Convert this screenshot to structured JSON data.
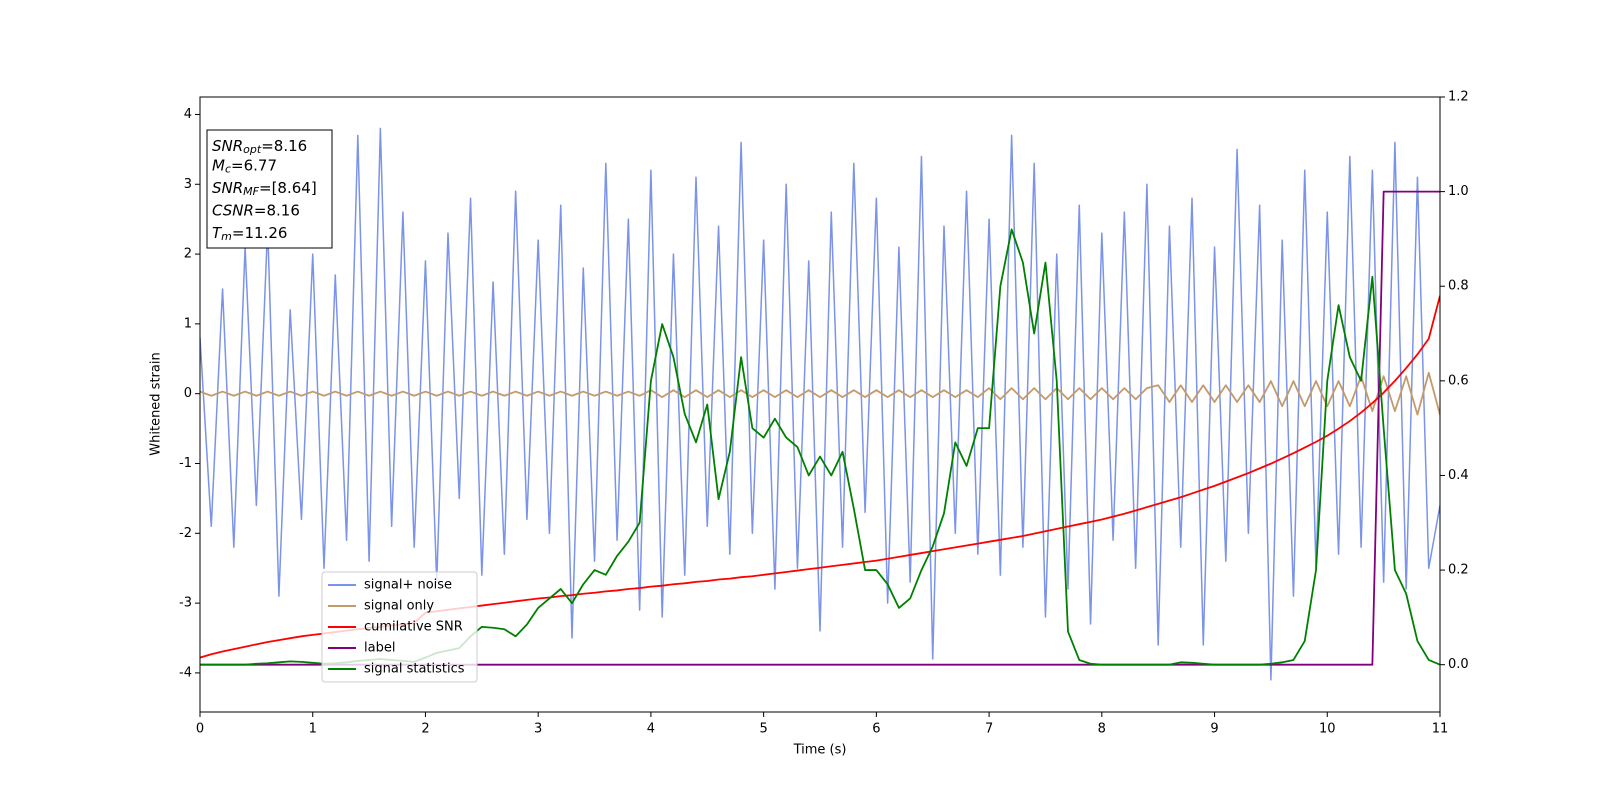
{
  "chart_data": {
    "type": "line",
    "xlabel": "Time (s)",
    "ylabel": "Whitened strain",
    "annotation": [
      {
        "base": "SNR",
        "sub": "opt",
        "rest": "=8.16"
      },
      {
        "base": "M",
        "sub": "c",
        "rest": "=6.77"
      },
      {
        "base": "SNR",
        "sub": "MF",
        "rest": "=[8.64]"
      },
      {
        "base": "CSNR",
        "sub": null,
        "rest": "=8.16"
      },
      {
        "base": "T",
        "sub": "m",
        "rest": "=11.26"
      }
    ],
    "legend": "lower left",
    "xlim": [
      0,
      11
    ],
    "xticks": [
      0,
      1,
      2,
      3,
      4,
      5,
      6,
      7,
      8,
      9,
      10,
      11
    ],
    "ylim": [
      -4.56,
      4.25
    ],
    "yticks": [
      -4,
      -3,
      -2,
      -1,
      0,
      1,
      2,
      3,
      4
    ],
    "y2lim": [
      -0.1,
      1.2
    ],
    "y2ticks": [
      {
        "value": 0,
        "label": "0.0"
      },
      {
        "value": 0.2,
        "label": "0.2"
      },
      {
        "value": 0.4,
        "label": "0.4"
      },
      {
        "value": 0.6,
        "label": "0.6"
      },
      {
        "value": 0.8,
        "label": "0.8"
      },
      {
        "value": 1,
        "label": "1.0"
      },
      {
        "value": 1.2,
        "label": "1.2"
      }
    ],
    "x": [
      0,
      0.1,
      0.2,
      0.3,
      0.4,
      0.5,
      0.6,
      0.7,
      0.8,
      0.9,
      1,
      1.1,
      1.2,
      1.3,
      1.4,
      1.5,
      1.6,
      1.7,
      1.8,
      1.9,
      2,
      2.1,
      2.2,
      2.3,
      2.4,
      2.5,
      2.6,
      2.7,
      2.8,
      2.9,
      3,
      3.1,
      3.2,
      3.3,
      3.4,
      3.5,
      3.6,
      3.7,
      3.8,
      3.9,
      4,
      4.1,
      4.2,
      4.3,
      4.4,
      4.5,
      4.6,
      4.7,
      4.8,
      4.9,
      5,
      5.1,
      5.2,
      5.3,
      5.4,
      5.5,
      5.6,
      5.7,
      5.8,
      5.9,
      6,
      6.1,
      6.2,
      6.3,
      6.4,
      6.5,
      6.6,
      6.7,
      6.8,
      6.9,
      7,
      7.1,
      7.2,
      7.3,
      7.4,
      7.5,
      7.6,
      7.7,
      7.8,
      7.9,
      8,
      8.1,
      8.2,
      8.3,
      8.4,
      8.5,
      8.6,
      8.7,
      8.8,
      8.9,
      9,
      9.1,
      9.2,
      9.3,
      9.4,
      9.5,
      9.6,
      9.7,
      9.8,
      9.9,
      10,
      10.1,
      10.2,
      10.3,
      10.4,
      10.5,
      10.6,
      10.7,
      10.8,
      10.9,
      11
    ],
    "series": [
      {
        "name": "signal+ noise",
        "color": "#7b93e8",
        "values": [
          0.8,
          -1.9,
          1.5,
          -2.2,
          2.1,
          -1.6,
          2.4,
          -2.9,
          1.2,
          -1.8,
          2.0,
          -2.5,
          1.7,
          -2.1,
          3.7,
          -2.4,
          3.8,
          -1.9,
          2.6,
          -2.2,
          1.9,
          -2.7,
          2.3,
          -1.5,
          2.8,
          -2.6,
          1.6,
          -2.3,
          2.9,
          -1.8,
          2.2,
          -2.0,
          2.7,
          -3.5,
          1.8,
          -2.4,
          3.3,
          -2.1,
          2.5,
          -3.1,
          3.2,
          -3.2,
          2.0,
          -2.6,
          3.1,
          -1.9,
          2.4,
          -2.3,
          3.6,
          -2.0,
          2.2,
          -2.8,
          3.0,
          -2.5,
          1.9,
          -3.4,
          2.6,
          -2.2,
          3.3,
          -1.7,
          2.8,
          -3.0,
          2.1,
          -2.7,
          3.4,
          -3.8,
          2.4,
          -2.0,
          2.9,
          -2.3,
          2.5,
          -2.6,
          3.7,
          -2.2,
          3.3,
          -3.2,
          2.0,
          -2.8,
          2.7,
          -3.3,
          2.3,
          -2.1,
          2.6,
          -2.5,
          3.0,
          -3.6,
          2.4,
          -2.2,
          2.8,
          -3.6,
          2.1,
          -2.4,
          3.5,
          -2.0,
          2.7,
          -4.1,
          2.2,
          -2.9,
          3.2,
          -2.5,
          2.6,
          -2.3,
          3.4,
          -2.2,
          3.2,
          -2.7,
          3.6,
          -2.8,
          3.1,
          -2.5,
          -1.6
        ]
      },
      {
        "name": "signal only",
        "color": "#c49a6c",
        "values": [
          0.03,
          -0.03,
          0.03,
          -0.03,
          0.03,
          -0.03,
          0.03,
          -0.03,
          0.03,
          -0.03,
          0.03,
          -0.03,
          0.03,
          -0.03,
          0.03,
          -0.03,
          0.03,
          -0.03,
          0.03,
          -0.03,
          0.03,
          -0.03,
          0.03,
          -0.03,
          0.03,
          -0.03,
          0.03,
          -0.03,
          0.03,
          -0.03,
          0.03,
          -0.03,
          0.03,
          -0.03,
          0.03,
          -0.03,
          0.03,
          -0.03,
          0.03,
          -0.03,
          0.05,
          -0.05,
          0.05,
          -0.05,
          0.05,
          -0.05,
          0.05,
          -0.05,
          0.05,
          -0.05,
          0.05,
          -0.05,
          0.05,
          -0.05,
          0.05,
          -0.05,
          0.05,
          -0.05,
          0.05,
          -0.05,
          0.05,
          -0.05,
          0.05,
          -0.05,
          0.05,
          -0.05,
          0.05,
          -0.05,
          0.05,
          -0.05,
          0.08,
          -0.08,
          0.08,
          -0.08,
          0.08,
          -0.08,
          0.08,
          -0.08,
          0.08,
          -0.08,
          0.08,
          -0.08,
          0.08,
          -0.08,
          0.08,
          0.12,
          -0.12,
          0.12,
          -0.12,
          0.12,
          -0.12,
          0.12,
          -0.12,
          0.12,
          -0.12,
          0.18,
          -0.18,
          0.18,
          -0.18,
          0.18,
          -0.18,
          0.18,
          -0.18,
          0.25,
          -0.25,
          0.25,
          -0.25,
          0.25,
          -0.3,
          0.3,
          -0.3
        ]
      },
      {
        "name": "cumilative SNR",
        "color": "#ff0000",
        "axis": "y2",
        "values": [
          0.015,
          0.022,
          0.028,
          0.033,
          0.038,
          0.043,
          0.048,
          0.052,
          0.056,
          0.06,
          0.063,
          0.066,
          0.069,
          0.072,
          0.075,
          0.078,
          0.08,
          0.083,
          0.085,
          0.088,
          0.11,
          0.113,
          0.116,
          0.119,
          0.122,
          0.125,
          0.128,
          0.131,
          0.134,
          0.137,
          0.14,
          0.142,
          0.145,
          0.147,
          0.15,
          0.152,
          0.155,
          0.157,
          0.16,
          0.162,
          0.165,
          0.167,
          0.17,
          0.172,
          0.175,
          0.177,
          0.18,
          0.182,
          0.185,
          0.187,
          0.19,
          0.193,
          0.196,
          0.199,
          0.202,
          0.205,
          0.208,
          0.211,
          0.214,
          0.217,
          0.22,
          0.224,
          0.228,
          0.232,
          0.236,
          0.24,
          0.244,
          0.248,
          0.252,
          0.256,
          0.26,
          0.264,
          0.268,
          0.272,
          0.277,
          0.282,
          0.287,
          0.292,
          0.297,
          0.302,
          0.307,
          0.313,
          0.319,
          0.326,
          0.333,
          0.34,
          0.347,
          0.354,
          0.362,
          0.37,
          0.378,
          0.387,
          0.396,
          0.405,
          0.415,
          0.425,
          0.436,
          0.447,
          0.459,
          0.471,
          0.484,
          0.499,
          0.515,
          0.533,
          0.553,
          0.575,
          0.6,
          0.627,
          0.656,
          0.689,
          0.78
        ]
      },
      {
        "name": "label",
        "color": "#800080",
        "axis": "y2",
        "values": [
          0,
          0,
          0,
          0,
          0,
          0,
          0,
          0,
          0,
          0,
          0,
          0,
          0,
          0,
          0,
          0,
          0,
          0,
          0,
          0,
          0,
          0,
          0,
          0,
          0,
          0,
          0,
          0,
          0,
          0,
          0,
          0,
          0,
          0,
          0,
          0,
          0,
          0,
          0,
          0,
          0,
          0,
          0,
          0,
          0,
          0,
          0,
          0,
          0,
          0,
          0,
          0,
          0,
          0,
          0,
          0,
          0,
          0,
          0,
          0,
          0,
          0,
          0,
          0,
          0,
          0,
          0,
          0,
          0,
          0,
          0,
          0,
          0,
          0,
          0,
          0,
          0,
          0,
          0,
          0,
          0,
          0,
          0,
          0,
          0,
          0,
          0,
          0,
          0,
          0,
          0,
          0,
          0,
          0,
          0,
          0,
          0,
          0,
          0,
          0,
          0,
          0,
          0,
          0,
          0,
          1,
          1,
          1,
          1,
          1,
          1
        ]
      },
      {
        "name": "signal statistics",
        "color": "#008000",
        "axis": "y2",
        "values": [
          0,
          0,
          0,
          0,
          0,
          0.002,
          0.003,
          0.005,
          0.007,
          0.006,
          0.004,
          0.002,
          0.003,
          0.005,
          0.008,
          0.01,
          0.012,
          0.01,
          0.008,
          0.006,
          0.015,
          0.025,
          0.03,
          0.035,
          0.06,
          0.08,
          0.078,
          0.075,
          0.06,
          0.085,
          0.12,
          0.14,
          0.16,
          0.13,
          0.17,
          0.2,
          0.19,
          0.23,
          0.26,
          0.3,
          0.6,
          0.72,
          0.65,
          0.53,
          0.47,
          0.55,
          0.35,
          0.45,
          0.65,
          0.5,
          0.48,
          0.52,
          0.48,
          0.46,
          0.4,
          0.44,
          0.4,
          0.45,
          0.33,
          0.2,
          0.2,
          0.17,
          0.12,
          0.14,
          0.2,
          0.25,
          0.32,
          0.47,
          0.42,
          0.5,
          0.5,
          0.8,
          0.92,
          0.85,
          0.7,
          0.85,
          0.6,
          0.07,
          0.01,
          0.002,
          0,
          0,
          0,
          0,
          0,
          0,
          0,
          0.005,
          0.004,
          0.002,
          0,
          0,
          0,
          0,
          0,
          0.002,
          0.005,
          0.01,
          0.05,
          0.2,
          0.6,
          0.76,
          0.65,
          0.6,
          0.82,
          0.5,
          0.2,
          0.15,
          0.05,
          0.01,
          0
        ]
      }
    ]
  }
}
